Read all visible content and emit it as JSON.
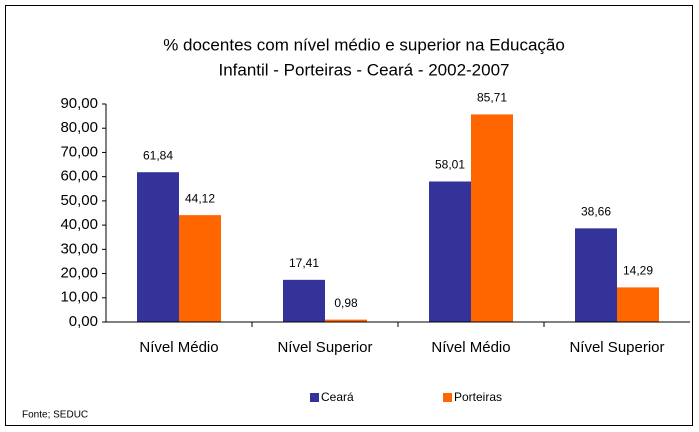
{
  "chart_data": {
    "type": "bar",
    "title": [
      "% docentes com nível médio e superior na  Educação",
      "Infantil - Porteiras - Ceará - 2002-2007"
    ],
    "categories": [
      "Nível Médio",
      "Nível Superior",
      "Nível Médio",
      "Nível Superior"
    ],
    "series": [
      {
        "name": "Ceará",
        "color": "#333399",
        "values": [
          61.84,
          17.41,
          58.01,
          38.66
        ],
        "value_labels": [
          "61,84",
          "17,41",
          "58,01",
          "38,66"
        ]
      },
      {
        "name": "Porteiras",
        "color": "#ff6600",
        "values": [
          44.12,
          0.98,
          85.71,
          14.29
        ],
        "value_labels": [
          "44,12",
          "0,98",
          "85,71",
          "14,29"
        ]
      }
    ],
    "ylim": [
      0,
      90
    ],
    "yticks": [
      {
        "value": 0,
        "label": "0,00"
      },
      {
        "value": 10,
        "label": "10,00"
      },
      {
        "value": 20,
        "label": "20,00"
      },
      {
        "value": 30,
        "label": "30,00"
      },
      {
        "value": 40,
        "label": "40,00"
      },
      {
        "value": 50,
        "label": "50,00"
      },
      {
        "value": 60,
        "label": "60,00"
      },
      {
        "value": 70,
        "label": "70,00"
      },
      {
        "value": 80,
        "label": "80,00"
      },
      {
        "value": 90,
        "label": "90,00"
      }
    ],
    "legend": "bottom",
    "source": "Fonte; SEDUC"
  }
}
